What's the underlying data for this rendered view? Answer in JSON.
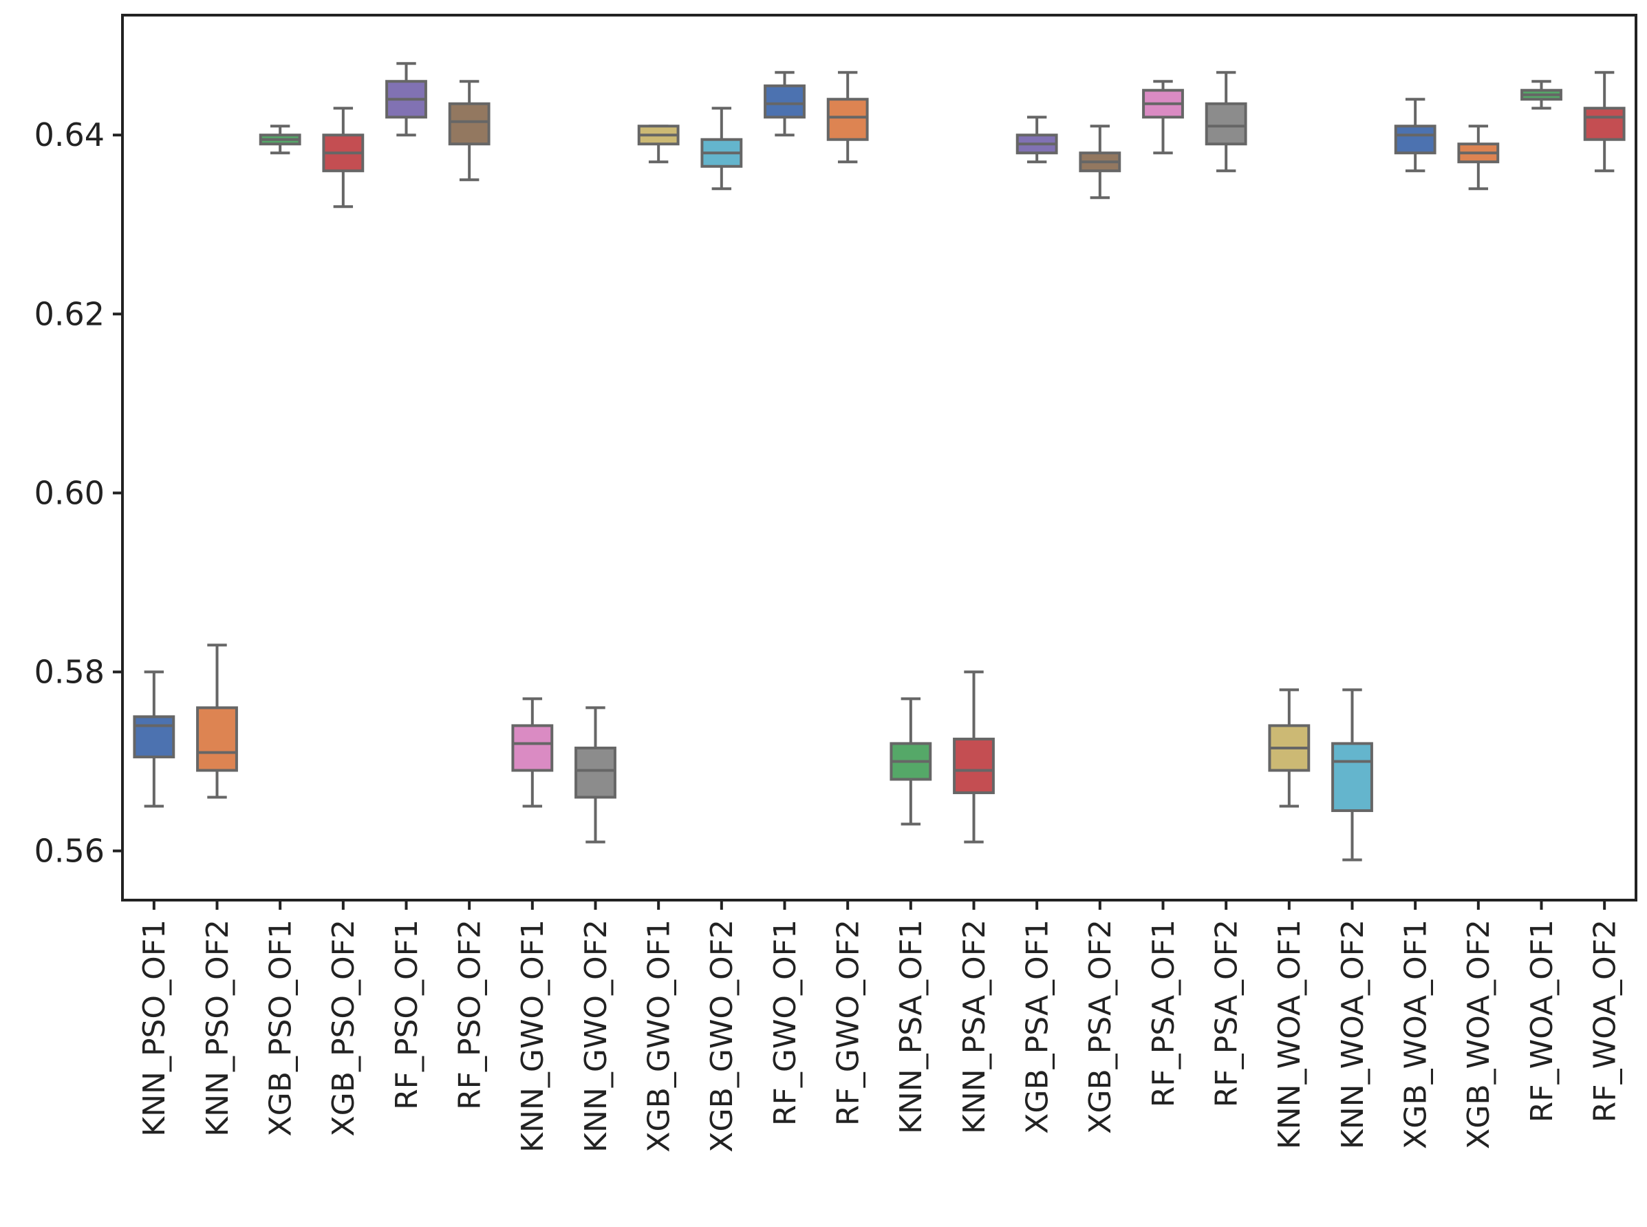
{
  "chart_data": {
    "type": "box",
    "title": "",
    "xlabel": "",
    "ylabel": "",
    "ylim": [
      0.5545,
      0.6534
    ],
    "yticks": [
      0.56,
      0.58,
      0.6,
      0.62,
      0.64
    ],
    "ytick_labels": [
      "0.56",
      "0.58",
      "0.60",
      "0.62",
      "0.64"
    ],
    "grid": false,
    "legend": "none",
    "categories": [
      "KNN_PSO_OF1",
      "KNN_PSO_OF2",
      "XGB_PSO_OF1",
      "XGB_PSO_OF2",
      "RF_PSO_OF1",
      "RF_PSO_OF2",
      "KNN_GWO_OF1",
      "KNN_GWO_OF2",
      "XGB_GWO_OF1",
      "XGB_GWO_OF2",
      "RF_GWO_OF1",
      "RF_GWO_OF2",
      "KNN_PSA_OF1",
      "KNN_PSA_OF2",
      "XGB_PSA_OF1",
      "XGB_PSA_OF2",
      "RF_PSA_OF1",
      "RF_PSA_OF2",
      "KNN_WOA_OF1",
      "KNN_WOA_OF2",
      "XGB_WOA_OF1",
      "XGB_WOA_OF2",
      "RF_WOA_OF1",
      "RF_WOA_OF2"
    ],
    "boxes": [
      {
        "min": 0.565,
        "q1": 0.5705,
        "median": 0.574,
        "q3": 0.575,
        "max": 0.58,
        "color": "#4c72b0"
      },
      {
        "min": 0.566,
        "q1": 0.569,
        "median": 0.571,
        "q3": 0.576,
        "max": 0.583,
        "color": "#dd8452"
      },
      {
        "min": 0.638,
        "q1": 0.639,
        "median": 0.6395,
        "q3": 0.64,
        "max": 0.641,
        "color": "#55a868"
      },
      {
        "min": 0.632,
        "q1": 0.636,
        "median": 0.638,
        "q3": 0.64,
        "max": 0.643,
        "color": "#c44e52"
      },
      {
        "min": 0.64,
        "q1": 0.642,
        "median": 0.644,
        "q3": 0.646,
        "max": 0.648,
        "color": "#8172b3"
      },
      {
        "min": 0.635,
        "q1": 0.639,
        "median": 0.6415,
        "q3": 0.6435,
        "max": 0.646,
        "color": "#937860"
      },
      {
        "min": 0.565,
        "q1": 0.569,
        "median": 0.572,
        "q3": 0.574,
        "max": 0.577,
        "color": "#da8bc3"
      },
      {
        "min": 0.561,
        "q1": 0.566,
        "median": 0.569,
        "q3": 0.5715,
        "max": 0.576,
        "color": "#8c8c8c"
      },
      {
        "min": 0.637,
        "q1": 0.639,
        "median": 0.64,
        "q3": 0.641,
        "max": 0.641,
        "color": "#ccb974"
      },
      {
        "min": 0.634,
        "q1": 0.6365,
        "median": 0.638,
        "q3": 0.6395,
        "max": 0.643,
        "color": "#64b5cd"
      },
      {
        "min": 0.64,
        "q1": 0.642,
        "median": 0.6435,
        "q3": 0.6455,
        "max": 0.647,
        "color": "#4c72b0"
      },
      {
        "min": 0.637,
        "q1": 0.6395,
        "median": 0.642,
        "q3": 0.644,
        "max": 0.647,
        "color": "#dd8452"
      },
      {
        "min": 0.563,
        "q1": 0.568,
        "median": 0.57,
        "q3": 0.572,
        "max": 0.577,
        "color": "#55a868"
      },
      {
        "min": 0.561,
        "q1": 0.5665,
        "median": 0.569,
        "q3": 0.5725,
        "max": 0.58,
        "color": "#c44e52"
      },
      {
        "min": 0.637,
        "q1": 0.638,
        "median": 0.639,
        "q3": 0.64,
        "max": 0.642,
        "color": "#8172b3"
      },
      {
        "min": 0.633,
        "q1": 0.636,
        "median": 0.637,
        "q3": 0.638,
        "max": 0.641,
        "color": "#937860"
      },
      {
        "min": 0.638,
        "q1": 0.642,
        "median": 0.6435,
        "q3": 0.645,
        "max": 0.646,
        "color": "#da8bc3"
      },
      {
        "min": 0.636,
        "q1": 0.639,
        "median": 0.641,
        "q3": 0.6435,
        "max": 0.647,
        "color": "#8c8c8c"
      },
      {
        "min": 0.565,
        "q1": 0.569,
        "median": 0.5715,
        "q3": 0.574,
        "max": 0.578,
        "color": "#ccb974"
      },
      {
        "min": 0.559,
        "q1": 0.5645,
        "median": 0.57,
        "q3": 0.572,
        "max": 0.578,
        "color": "#64b5cd"
      },
      {
        "min": 0.636,
        "q1": 0.638,
        "median": 0.64,
        "q3": 0.641,
        "max": 0.644,
        "color": "#4c72b0"
      },
      {
        "min": 0.634,
        "q1": 0.637,
        "median": 0.638,
        "q3": 0.639,
        "max": 0.641,
        "color": "#dd8452"
      },
      {
        "min": 0.643,
        "q1": 0.644,
        "median": 0.6445,
        "q3": 0.645,
        "max": 0.646,
        "color": "#55a868"
      },
      {
        "min": 0.636,
        "q1": 0.6395,
        "median": 0.642,
        "q3": 0.643,
        "max": 0.647,
        "color": "#c44e52"
      }
    ],
    "whisker_color": "#666666"
  }
}
